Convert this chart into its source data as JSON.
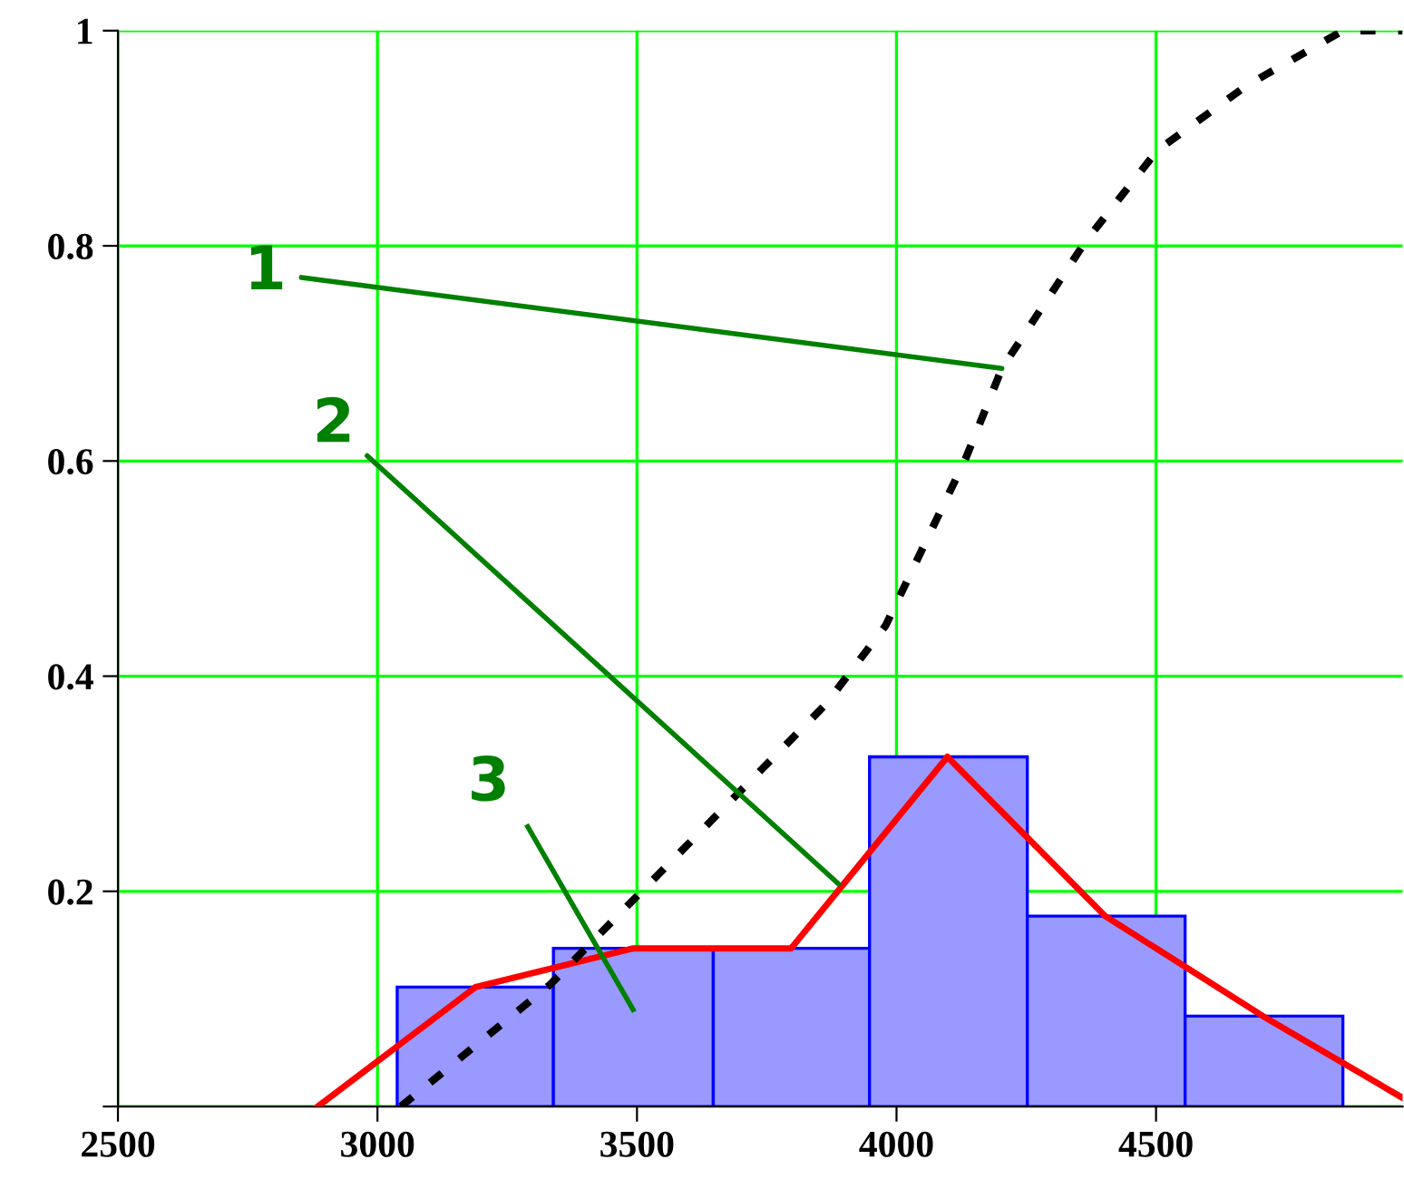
{
  "chart_data": {
    "type": "histogram",
    "series": [
      {
        "color": "#9999ff",
        "bins": [
          3038,
          3339,
          3647,
          3948,
          4252,
          4556,
          4860
        ],
        "values": [
          0.111,
          0.147,
          0.147,
          0.325,
          0.177,
          0.084
        ]
      },
      {
        "type": "line",
        "color": "#ff0000",
        "line_style": "solid",
        "x": [
          2885,
          3189,
          3493,
          3797,
          4098,
          4402,
          4706,
          4975
        ],
        "values": [
          0,
          0.111,
          0.147,
          0.147,
          0.325,
          0.177,
          0.084,
          0.008
        ]
      },
      {
        "type": "line",
        "color": "#000000",
        "line_style": "dotted",
        "x": [
          3045,
          3332,
          3503,
          3864,
          3979,
          4133,
          4203,
          4364,
          4503,
          4675,
          4860,
          4975
        ],
        "values": [
          0,
          0.113,
          0.197,
          0.374,
          0.447,
          0.602,
          0.686,
          0.804,
          0.889,
          0.949,
          1.0,
          1.0
        ]
      }
    ],
    "xlim": [
      2500,
      4975
    ],
    "xticks": [
      2500,
      3000,
      3500,
      4000,
      4500
    ],
    "ylim": [
      0,
      1
    ],
    "yticks": [
      {
        "value": 0,
        "label": null
      },
      0.2,
      0.4,
      0.6,
      0.8,
      1
    ],
    "grid": true,
    "annotations": [
      {
        "text": "1",
        "x": 4203,
        "y": 0.686
      },
      {
        "text": "2",
        "x": 3888,
        "y": 0.207
      },
      "3"
    ]
  }
}
